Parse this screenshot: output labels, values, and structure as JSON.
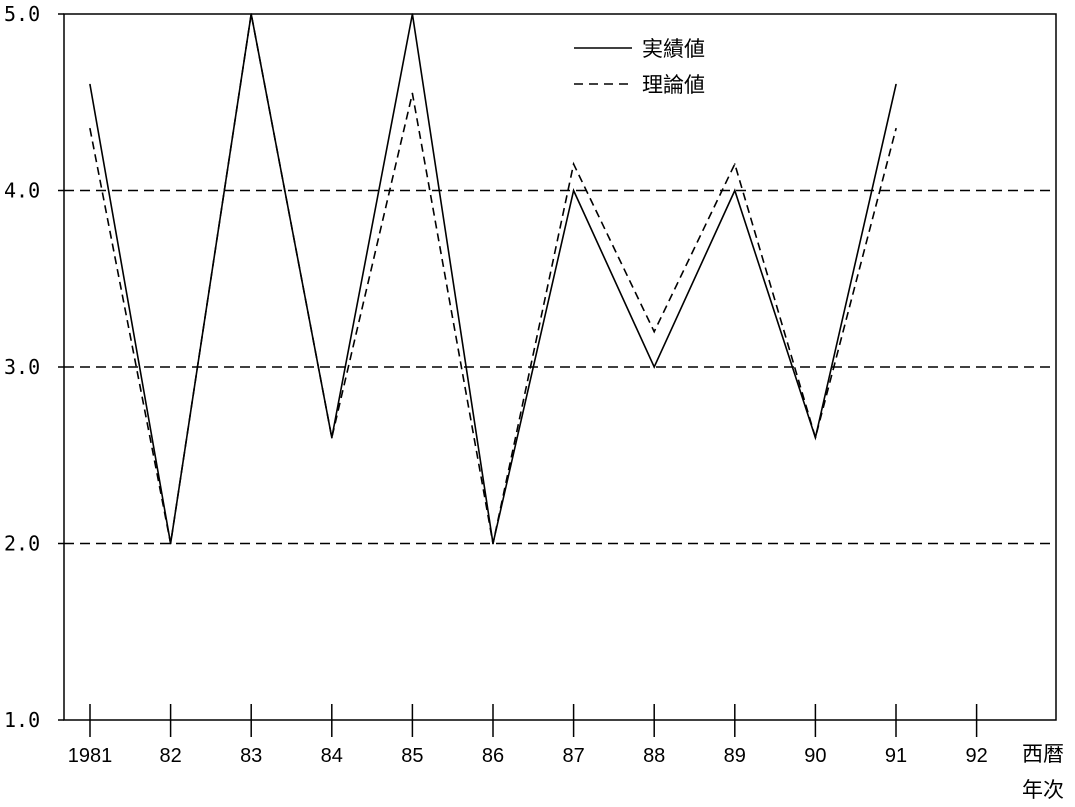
{
  "chart_data": {
    "type": "line",
    "categories": [
      "1981",
      "82",
      "83",
      "84",
      "85",
      "86",
      "87",
      "88",
      "89",
      "90",
      "91",
      "92"
    ],
    "series": [
      {
        "name": "実績値",
        "style": "solid",
        "values": [
          4.6,
          2.0,
          5.0,
          2.6,
          5.0,
          2.0,
          4.0,
          3.0,
          4.0,
          2.6,
          4.6,
          null
        ]
      },
      {
        "name": "理論値",
        "style": "dashed",
        "values": [
          4.35,
          2.0,
          5.0,
          2.6,
          4.55,
          2.0,
          4.15,
          3.2,
          4.15,
          2.6,
          4.35,
          null
        ]
      }
    ],
    "ylim": [
      1.0,
      5.0
    ],
    "yticks": [
      "1.0",
      "2.0",
      "3.0",
      "4.0",
      "5.0"
    ],
    "ygrid": [
      2.0,
      3.0,
      4.0
    ],
    "xlabel_line1": "西暦",
    "xlabel_line2": "年次",
    "legend_position": "top-right",
    "colors": {
      "line": "#000000",
      "grid": "#000000",
      "background": "#ffffff"
    }
  }
}
